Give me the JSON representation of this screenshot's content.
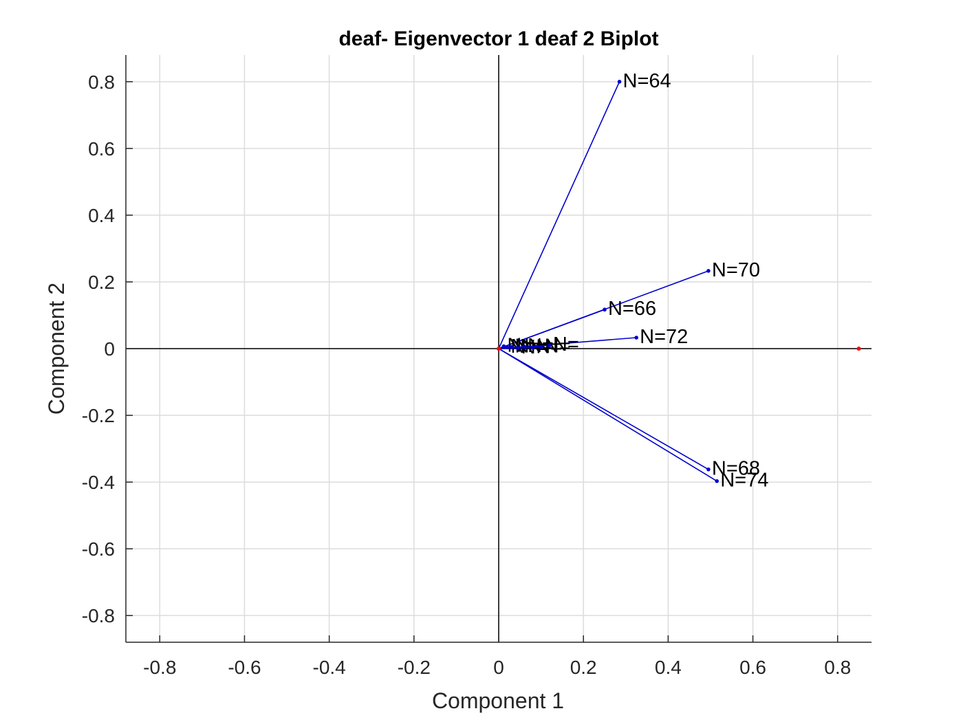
{
  "chart_data": {
    "type": "biplot",
    "title": "deaf- Eigenvector 1 deaf 2 Biplot",
    "xlabel": "Component 1",
    "ylabel": "Component 2",
    "xlim": [
      -0.88,
      0.88
    ],
    "ylim": [
      -0.88,
      0.88
    ],
    "xticks": [
      -0.8,
      -0.6,
      -0.4,
      -0.2,
      0,
      0.2,
      0.4,
      0.6,
      0.8
    ],
    "yticks": [
      -0.8,
      -0.6,
      -0.4,
      -0.2,
      0,
      0.2,
      0.4,
      0.6,
      0.8
    ],
    "xtick_labels": [
      "-0.8",
      "-0.6",
      "-0.4",
      "-0.2",
      "0",
      "0.2",
      "0.4",
      "0.6",
      "0.8"
    ],
    "ytick_labels": [
      "-0.8",
      "-0.6",
      "-0.4",
      "-0.2",
      "0",
      "0.2",
      "0.4",
      "0.6",
      "0.8"
    ],
    "grid": true,
    "vector_color": "#0000cc",
    "point_color": "#ff0000",
    "vectors": [
      {
        "label": "N=64",
        "x": 0.285,
        "y": 0.8
      },
      {
        "label": "N=70",
        "x": 0.495,
        "y": 0.233
      },
      {
        "label": "N=66",
        "x": 0.25,
        "y": 0.117
      },
      {
        "label": "N=72",
        "x": 0.325,
        "y": 0.033
      },
      {
        "label": "N=68",
        "x": 0.495,
        "y": -0.362
      },
      {
        "label": "N=74",
        "x": 0.515,
        "y": -0.397
      },
      {
        "label": "N=",
        "x": 0.012,
        "y": 0.007
      },
      {
        "label": "N=",
        "x": 0.02,
        "y": 0.004
      },
      {
        "label": "N=",
        "x": 0.03,
        "y": 0.005
      },
      {
        "label": "N=",
        "x": 0.045,
        "y": 0.002
      },
      {
        "label": "N=",
        "x": 0.06,
        "y": 0.006
      },
      {
        "label": "N=",
        "x": 0.08,
        "y": 0.003
      },
      {
        "label": "N=",
        "x": 0.1,
        "y": 0.005
      },
      {
        "label": "N=",
        "x": 0.12,
        "y": 0.01
      }
    ],
    "points": [
      {
        "x": 0.0,
        "y": 0.0
      },
      {
        "x": 0.85,
        "y": 0.0
      }
    ]
  }
}
